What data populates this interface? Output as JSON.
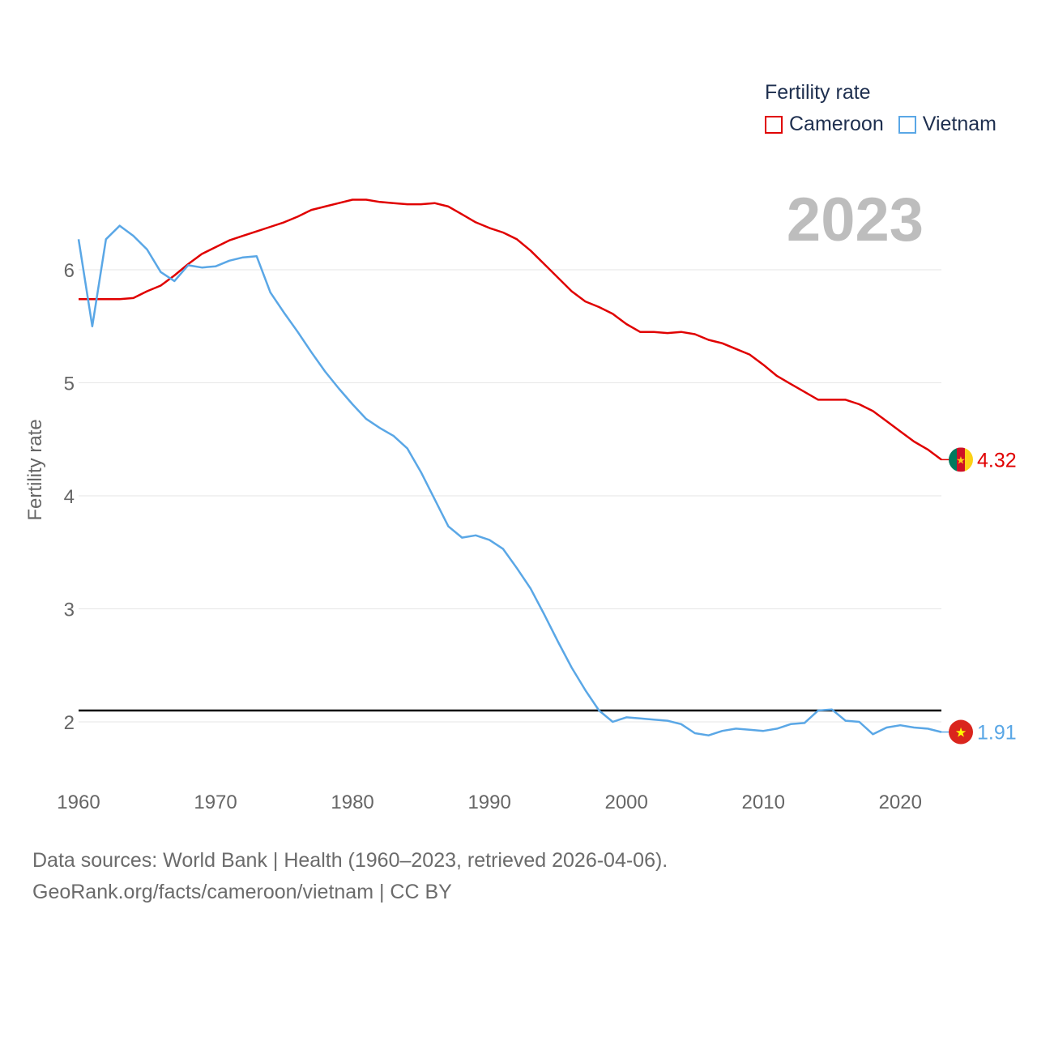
{
  "chart_data": {
    "type": "line",
    "title": "Fertility rate",
    "xlabel": "",
    "ylabel": "Fertility rate",
    "xlim": [
      1960,
      2023
    ],
    "ylim": [
      1.55,
      6.95
    ],
    "x_ticks": [
      1960,
      1970,
      1980,
      1990,
      2000,
      2010,
      2020
    ],
    "y_ticks": [
      2,
      3,
      4,
      5,
      6
    ],
    "reference_line": 2.1,
    "highlight_year": "2023",
    "x": [
      1960,
      1961,
      1962,
      1963,
      1964,
      1965,
      1966,
      1967,
      1968,
      1969,
      1970,
      1971,
      1972,
      1973,
      1974,
      1975,
      1976,
      1977,
      1978,
      1979,
      1980,
      1981,
      1982,
      1983,
      1984,
      1985,
      1986,
      1987,
      1988,
      1989,
      1990,
      1991,
      1992,
      1993,
      1994,
      1995,
      1996,
      1997,
      1998,
      1999,
      2000,
      2001,
      2002,
      2003,
      2004,
      2005,
      2006,
      2007,
      2008,
      2009,
      2010,
      2011,
      2012,
      2013,
      2014,
      2015,
      2016,
      2017,
      2018,
      2019,
      2020,
      2021,
      2022,
      2023
    ],
    "series": [
      {
        "name": "Cameroon",
        "color": "#e00000",
        "end_label": "4.32",
        "flag_icon": "cameroon-flag-icon",
        "values": [
          5.74,
          5.74,
          5.74,
          5.74,
          5.75,
          5.81,
          5.86,
          5.95,
          6.05,
          6.14,
          6.2,
          6.26,
          6.3,
          6.34,
          6.38,
          6.42,
          6.47,
          6.53,
          6.56,
          6.59,
          6.62,
          6.62,
          6.6,
          6.59,
          6.58,
          6.58,
          6.59,
          6.56,
          6.49,
          6.42,
          6.37,
          6.33,
          6.27,
          6.17,
          6.05,
          5.93,
          5.81,
          5.72,
          5.67,
          5.61,
          5.52,
          5.45,
          5.45,
          5.44,
          5.45,
          5.43,
          5.38,
          5.35,
          5.3,
          5.25,
          5.16,
          5.06,
          4.99,
          4.92,
          4.85,
          4.85,
          4.85,
          4.81,
          4.75,
          4.66,
          4.57,
          4.48,
          4.41,
          4.32
        ]
      },
      {
        "name": "Vietnam",
        "color": "#5aa7e6",
        "end_label": "1.91",
        "flag_icon": "vietnam-flag-icon",
        "values": [
          6.27,
          5.5,
          6.27,
          6.39,
          6.3,
          6.18,
          5.98,
          5.9,
          6.04,
          6.02,
          6.03,
          6.08,
          6.11,
          6.12,
          5.8,
          5.62,
          5.45,
          5.27,
          5.1,
          4.95,
          4.81,
          4.68,
          4.6,
          4.53,
          4.42,
          4.21,
          3.97,
          3.73,
          3.63,
          3.65,
          3.61,
          3.53,
          3.36,
          3.18,
          2.95,
          2.71,
          2.48,
          2.28,
          2.1,
          2.0,
          2.04,
          2.03,
          2.02,
          2.01,
          1.98,
          1.9,
          1.88,
          1.92,
          1.94,
          1.93,
          1.92,
          1.94,
          1.98,
          1.99,
          2.1,
          2.11,
          2.01,
          2.0,
          1.89,
          1.95,
          1.97,
          1.95,
          1.94,
          1.91
        ]
      }
    ]
  },
  "footer": {
    "line1": "Data sources: World Bank | Health (1960–2023, retrieved 2026-04-06).",
    "line2": "GeoRank.org/facts/cameroon/vietnam | CC BY"
  }
}
